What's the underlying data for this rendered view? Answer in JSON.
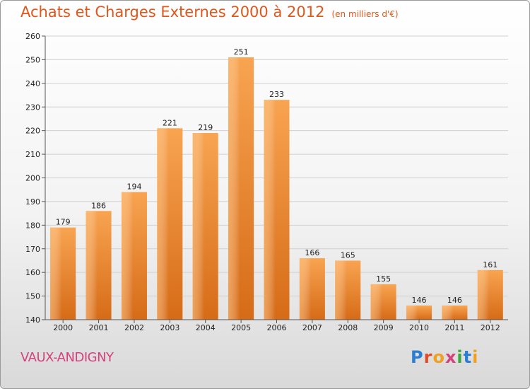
{
  "header": {
    "title": "Achats et Charges Externes 2000 à 2012",
    "subtitle": "(en milliers d'€)"
  },
  "footer": {
    "commune": "VAUX-ANDIGNY",
    "logo": "Proxiti"
  },
  "colors": {
    "title": "#e0561b",
    "bar_light": "#f7a24e",
    "bar_dark": "#d86c17",
    "commune": "#d4427c"
  },
  "chart_data": {
    "type": "bar",
    "title": "Achats et Charges Externes 2000 à 2012",
    "subtitle": "(en milliers d'€)",
    "categories": [
      "2000",
      "2001",
      "2002",
      "2003",
      "2004",
      "2005",
      "2006",
      "2007",
      "2008",
      "2009",
      "2010",
      "2011",
      "2012"
    ],
    "values": [
      179,
      186,
      194,
      221,
      219,
      251,
      233,
      166,
      165,
      155,
      146,
      146,
      161
    ],
    "ylim": [
      140,
      260
    ],
    "yticks": [
      140,
      150,
      160,
      170,
      180,
      190,
      200,
      210,
      220,
      230,
      240,
      250,
      260
    ],
    "grid": true,
    "xlabel": "",
    "ylabel": ""
  }
}
